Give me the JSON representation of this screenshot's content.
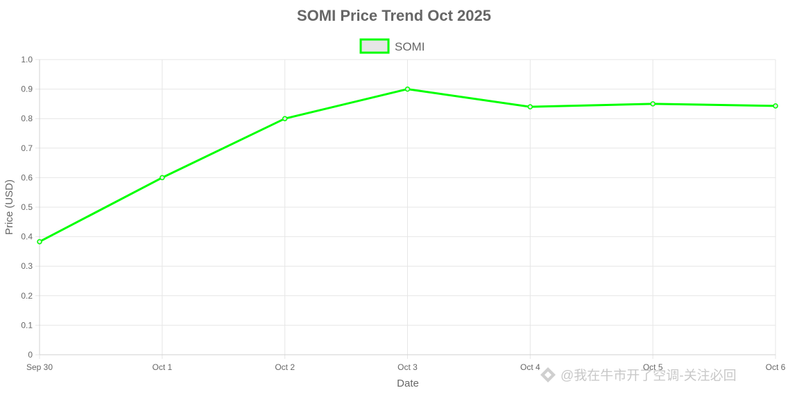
{
  "chart_data": {
    "type": "line",
    "title": "SOMI Price Trend Oct 2025",
    "xlabel": "Date",
    "ylabel": "Price (USD)",
    "categories": [
      "Sep 30",
      "Oct 1",
      "Oct 2",
      "Oct 3",
      "Oct 4",
      "Oct 5",
      "Oct 6"
    ],
    "series": [
      {
        "name": "SOMI",
        "values": [
          0.383,
          0.6,
          0.8,
          0.9,
          0.84,
          0.85,
          0.843
        ],
        "color": "#00ff00"
      }
    ],
    "ylim": [
      0,
      1
    ],
    "yticks": [
      "0",
      "0.1",
      "0.2",
      "0.3",
      "0.4",
      "0.5",
      "0.6",
      "0.7",
      "0.8",
      "0.9",
      "1.0"
    ],
    "grid": true,
    "legend_position": "top-center"
  },
  "watermark": {
    "text": "@我在牛市开了空调-关注必回"
  },
  "colors": {
    "text": "#666666",
    "grid": "#e6e6e6",
    "legend_fill": "#e6e6e6",
    "line": "#00ff00"
  }
}
